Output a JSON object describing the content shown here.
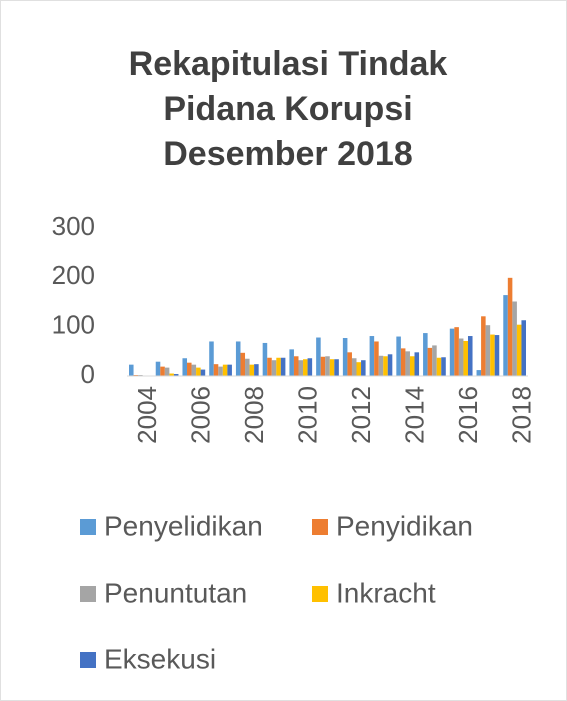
{
  "chart_data": {
    "type": "bar",
    "title": "Rekapitulasi Tindak Pidana Korupsi Desember 2018",
    "categories": [
      "2004",
      null,
      "2006",
      null,
      "2008",
      null,
      "2010",
      null,
      "2012",
      null,
      "2014",
      null,
      "2016",
      null,
      "2018"
    ],
    "series": [
      {
        "name": "Penyelidikan",
        "color": "#5b9bd5",
        "values": [
          23,
          29,
          36,
          70,
          70,
          67,
          54,
          78,
          77,
          81,
          80,
          87,
          96,
          12,
          164
        ]
      },
      {
        "name": "Penyidikan",
        "color": "#ed7d31",
        "values": [
          2,
          19,
          27,
          24,
          47,
          37,
          40,
          39,
          48,
          70,
          56,
          57,
          99,
          121,
          199
        ]
      },
      {
        "name": "Penuntutan",
        "color": "#a5a5a5",
        "values": [
          2,
          17,
          23,
          19,
          35,
          32,
          32,
          40,
          36,
          41,
          50,
          62,
          76,
          103,
          151
        ]
      },
      {
        "name": "Inkracht",
        "color": "#ffc000",
        "values": [
          0,
          5,
          17,
          23,
          23,
          37,
          34,
          34,
          28,
          40,
          40,
          37,
          71,
          84,
          104
        ]
      },
      {
        "name": "Eksekusi",
        "color": "#4472c4",
        "values": [
          0,
          4,
          13,
          23,
          24,
          37,
          36,
          34,
          32,
          44,
          48,
          38,
          81,
          83,
          113
        ]
      }
    ],
    "ylim": [
      0,
      300
    ],
    "yticks": [
      0,
      100,
      200,
      300
    ],
    "grid": false
  }
}
